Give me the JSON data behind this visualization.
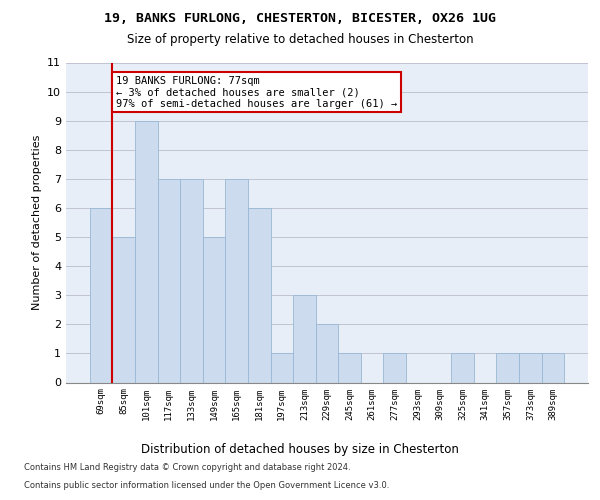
{
  "title1": "19, BANKS FURLONG, CHESTERTON, BICESTER, OX26 1UG",
  "title2": "Size of property relative to detached houses in Chesterton",
  "xlabel": "Distribution of detached houses by size in Chesterton",
  "ylabel": "Number of detached properties",
  "categories": [
    "69sqm",
    "85sqm",
    "101sqm",
    "117sqm",
    "133sqm",
    "149sqm",
    "165sqm",
    "181sqm",
    "197sqm",
    "213sqm",
    "229sqm",
    "245sqm",
    "261sqm",
    "277sqm",
    "293sqm",
    "309sqm",
    "325sqm",
    "341sqm",
    "357sqm",
    "373sqm",
    "389sqm"
  ],
  "values": [
    6,
    5,
    9,
    7,
    7,
    5,
    7,
    6,
    1,
    3,
    2,
    1,
    0,
    1,
    0,
    0,
    1,
    0,
    1,
    1,
    1
  ],
  "bar_color": "#ccdcee",
  "bar_edge_color": "#99b8d4",
  "annotation_text": "19 BANKS FURLONG: 77sqm\n← 3% of detached houses are smaller (2)\n97% of semi-detached houses are larger (61) →",
  "annotation_box_color": "#ffffff",
  "annotation_box_edge_color": "#cc0000",
  "vline_color": "#cc0000",
  "ylim": [
    0,
    11
  ],
  "yticks": [
    0,
    1,
    2,
    3,
    4,
    5,
    6,
    7,
    8,
    9,
    10,
    11
  ],
  "footer1": "Contains HM Land Registry data © Crown copyright and database right 2024.",
  "footer2": "Contains public sector information licensed under the Open Government Licence v3.0.",
  "bg_color": "#e8eef8",
  "grid_color": "#bbbbcc",
  "title1_fontsize": 9.5,
  "title2_fontsize": 8.5,
  "ylabel_fontsize": 8,
  "xlabel_fontsize": 8.5,
  "xtick_fontsize": 6.5,
  "ytick_fontsize": 8,
  "ann_fontsize": 7.5,
  "footer_fontsize": 6
}
